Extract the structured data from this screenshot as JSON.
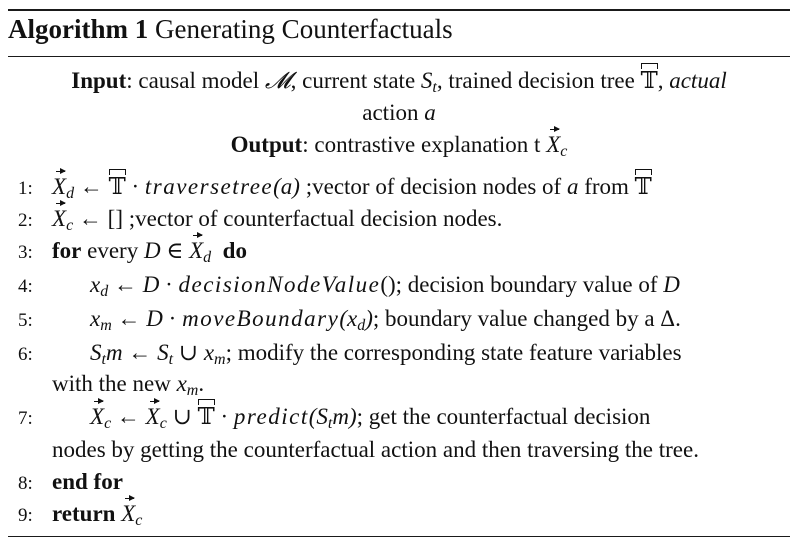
{
  "algorithm": {
    "label": "Algorithm 1",
    "title": "Generating Counterfactuals"
  },
  "io": {
    "input_label": "Input",
    "input_text_1": ": causal model ",
    "model_symbol": "𝓜",
    "input_text_2": ", current state ",
    "state": "S",
    "state_sub": "t",
    "input_text_3": ", trained decision tree ",
    "tree_symbol": "𝕋",
    "input_text_4": ", ",
    "actual": "actual",
    "action_line": "action ",
    "action_var": "a",
    "output_label": "Output",
    "output_text": ": contrastive explanation t "
  },
  "lines": [
    {
      "num": "1:",
      "pre": "",
      "var": "X",
      "sub": "d",
      "op": " ← ",
      "tree": "𝕋",
      "dot": " · ",
      "func": "traversetree",
      "args": "(a)",
      "comment": " ;vector of decision nodes of ",
      "ca": "a",
      "from": " from ",
      "tree2": "𝕋"
    },
    {
      "num": "2:",
      "var": "X",
      "sub": "c",
      "op": " ← ",
      "list": "[]",
      "comment": " ;vector of counterfactual decision nodes."
    },
    {
      "num": "3:",
      "kw_for": "for",
      "text": " every ",
      "D": "D",
      "in": " ∈ ",
      "var": "X",
      "sub": "d",
      "kw_do": "do"
    },
    {
      "num": "4:",
      "x": "x",
      "sub": "d",
      "op": " ← ",
      "D": "D",
      "dot": " · ",
      "func": "decisionNodeValue",
      "args": "()",
      "comment": "; decision boundary value of ",
      "cD": "D"
    },
    {
      "num": "5:",
      "x": "x",
      "sub": "m",
      "op": " ← ",
      "D": "D",
      "dot": " · ",
      "func": "moveBoundary",
      "args_open": "(",
      "ax": "x",
      "asub": "d",
      "args_close": ")",
      "comment": "; boundary value changed by a Δ."
    },
    {
      "num": "6:",
      "S": "S",
      "sub": "t",
      "m": "m",
      "op": " ← ",
      "S2": "S",
      "sub2": "t",
      "cup": " ∪ ",
      "x": "x",
      "xsub": "m",
      "comment": "; modify the corresponding state feature variables",
      "cont": "with the new ",
      "cx": "x",
      "cxsub": "m",
      "cend": "."
    },
    {
      "num": "7:",
      "var": "X",
      "sub": "c",
      "op": " ← ",
      "var2": "X",
      "sub2": "c",
      "cup": " ∪ ",
      "tree": "𝕋",
      "dot": " · ",
      "func": "predict",
      "args_open": "(",
      "aS": "S",
      "asub": "t",
      "am": "m",
      "args_close": ")",
      "comment": "; get the counterfactual decision",
      "cont": "nodes by getting the counterfactual action and then traversing the tree."
    },
    {
      "num": "8:",
      "kw": "end for"
    },
    {
      "num": "9:",
      "kw": "return",
      "var": "X",
      "sub": "c"
    }
  ]
}
